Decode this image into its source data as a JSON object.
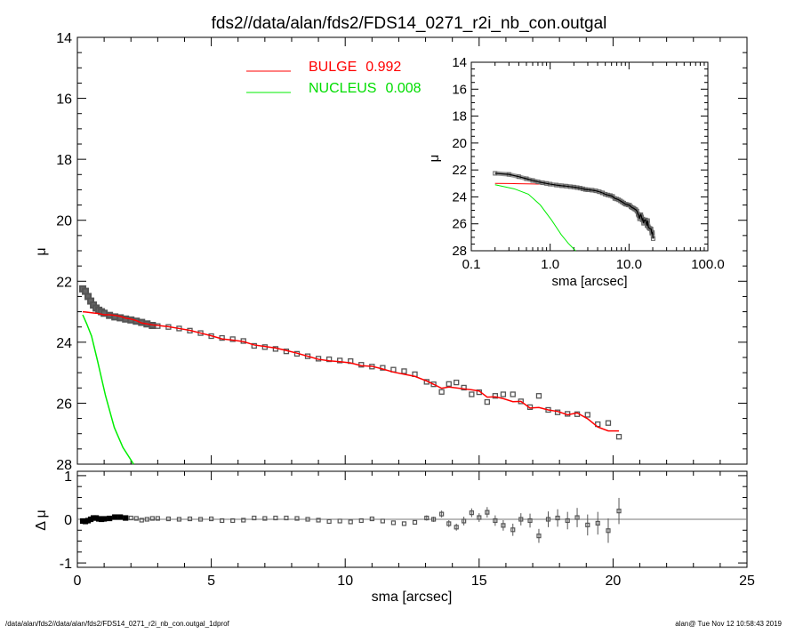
{
  "chart_data": {
    "type": "scatter",
    "title": "fds2//data/alan/fds2/FDS14_0271_r2i_nb_con.outgal",
    "xlabel": "sma [arcsec]",
    "ylabel": "μ",
    "resid_ylabel": "Δ μ",
    "xlim": [
      0,
      25
    ],
    "ylim": [
      28,
      14
    ],
    "resid_ylim": [
      -1.1,
      1.1
    ],
    "x_ticks": [
      "0",
      "5",
      "10",
      "15",
      "20",
      "25"
    ],
    "y_ticks": [
      "14",
      "16",
      "18",
      "20",
      "22",
      "24",
      "26",
      "28"
    ],
    "resid_ticks": [
      "1",
      "0",
      "-1"
    ],
    "legend": [
      {
        "label": "BULGE",
        "value": "0.992",
        "color": "#ff0000"
      },
      {
        "label": "NUCLEUS",
        "value": "0.008",
        "color": "#00ee00"
      }
    ],
    "legend_placement": "top-center",
    "inset": {
      "xlabel": "sma [arcsec]",
      "ylabel": "μ",
      "xscale": "log",
      "xlim": [
        0.1,
        100
      ],
      "ylim": [
        28,
        14
      ],
      "x_ticks": [
        "0.1",
        "1.0",
        "10.0",
        "100.0"
      ],
      "y_ticks": [
        "14",
        "16",
        "18",
        "20",
        "22",
        "24",
        "26",
        "28"
      ],
      "placement": "top-right"
    },
    "points_columns": [
      "sma",
      "mu",
      "delta_mu",
      "err"
    ],
    "points": [
      [
        0.2,
        22.25,
        -0.04,
        0
      ],
      [
        0.3,
        22.33,
        -0.05,
        0
      ],
      [
        0.4,
        22.5,
        -0.03,
        0
      ],
      [
        0.5,
        22.65,
        0,
        0
      ],
      [
        0.6,
        22.78,
        0.03,
        0
      ],
      [
        0.7,
        22.88,
        0.03,
        0
      ],
      [
        0.8,
        22.95,
        0.01,
        0
      ],
      [
        0.9,
        23.0,
        0,
        0
      ],
      [
        1.0,
        23.05,
        0.01,
        0
      ],
      [
        1.2,
        23.12,
        0.02,
        0
      ],
      [
        1.4,
        23.17,
        0.05,
        0
      ],
      [
        1.6,
        23.2,
        0.05,
        0
      ],
      [
        1.8,
        23.24,
        0.03,
        0
      ],
      [
        2.0,
        23.27,
        0.03,
        0
      ],
      [
        2.2,
        23.31,
        0.02,
        0
      ],
      [
        2.4,
        23.35,
        -0.02,
        0
      ],
      [
        2.6,
        23.4,
        0,
        0
      ],
      [
        2.8,
        23.45,
        0.02,
        0
      ],
      [
        3.0,
        23.47,
        0.02,
        0
      ],
      [
        3.4,
        23.5,
        0.01,
        0
      ],
      [
        3.8,
        23.55,
        0,
        0
      ],
      [
        4.2,
        23.62,
        0.01,
        0
      ],
      [
        4.6,
        23.7,
        0,
        0
      ],
      [
        5.0,
        23.8,
        0.01,
        0
      ],
      [
        5.4,
        23.86,
        -0.03,
        0
      ],
      [
        5.8,
        23.9,
        -0.03,
        0
      ],
      [
        6.2,
        23.96,
        -0.02,
        0
      ],
      [
        6.6,
        24.12,
        0.03,
        0
      ],
      [
        7.0,
        24.16,
        0.02,
        0
      ],
      [
        7.4,
        24.22,
        0.03,
        0
      ],
      [
        7.8,
        24.3,
        0.03,
        0
      ],
      [
        8.2,
        24.38,
        0.02,
        0
      ],
      [
        8.6,
        24.46,
        0,
        0
      ],
      [
        9.0,
        24.54,
        -0.02,
        0
      ],
      [
        9.4,
        24.56,
        -0.05,
        0
      ],
      [
        9.8,
        24.6,
        -0.04,
        0
      ],
      [
        10.2,
        24.62,
        -0.06,
        0
      ],
      [
        10.6,
        24.74,
        -0.03,
        0
      ],
      [
        11.0,
        24.8,
        0.01,
        0
      ],
      [
        11.4,
        24.84,
        -0.04,
        0
      ],
      [
        11.8,
        24.9,
        -0.08,
        0
      ],
      [
        12.2,
        24.95,
        -0.1,
        0
      ],
      [
        12.6,
        25.05,
        -0.07,
        0
      ],
      [
        13.04,
        25.3,
        0.03,
        0.03
      ],
      [
        13.3,
        25.38,
        0,
        0.03
      ],
      [
        13.6,
        25.63,
        0.12,
        0.04
      ],
      [
        13.87,
        25.37,
        -0.1,
        0.04
      ],
      [
        14.15,
        25.32,
        -0.18,
        0.04
      ],
      [
        14.43,
        25.49,
        -0.04,
        0.05
      ],
      [
        14.72,
        25.71,
        0.15,
        0.05
      ],
      [
        15.0,
        25.64,
        0.04,
        0.05
      ],
      [
        15.3,
        25.96,
        0.16,
        0.06
      ],
      [
        15.6,
        25.76,
        -0.03,
        0.06
      ],
      [
        15.9,
        25.71,
        -0.14,
        0.06
      ],
      [
        16.26,
        25.71,
        -0.24,
        0.07
      ],
      [
        16.56,
        25.94,
        0,
        0.07
      ],
      [
        16.9,
        26.13,
        -0.03,
        0.08
      ],
      [
        17.23,
        25.76,
        -0.38,
        0.08
      ],
      [
        17.58,
        26.22,
        0,
        0.09
      ],
      [
        17.93,
        26.3,
        0.03,
        0.1
      ],
      [
        18.3,
        26.35,
        -0.03,
        0.1
      ],
      [
        18.66,
        26.36,
        0.04,
        0.11
      ],
      [
        19.05,
        26.38,
        -0.13,
        0.12
      ],
      [
        19.43,
        26.69,
        -0.09,
        0.13
      ],
      [
        19.82,
        26.65,
        -0.26,
        0.14
      ],
      [
        20.22,
        27.1,
        0.19,
        0.15
      ]
    ],
    "bulge_inner": {
      "sma": [
        0.2,
        0.3,
        0.4,
        0.5,
        0.6,
        0.7,
        0.8,
        0.9,
        1.0
      ],
      "mu": [
        23.0,
        23.01,
        23.02,
        23.03,
        23.04,
        23.05,
        23.06,
        23.08,
        23.1
      ]
    },
    "nucleus": {
      "sma": [
        0.2,
        0.35,
        0.53,
        0.75,
        1.05,
        1.38,
        1.7,
        2.1
      ],
      "mu": [
        23.1,
        23.4,
        23.8,
        24.6,
        25.75,
        26.8,
        27.45,
        28.05
      ]
    },
    "colors": {
      "bulge": "#ff0000",
      "nucleus": "#00ee00",
      "data": "#555555"
    }
  },
  "footer": {
    "left": "/data/alan/fds2//data/alan/fds2/FDS14_0271_r2i_nb_con.outgal_1dprof",
    "right": "alan@  Tue Nov 12 10:58:43 2019"
  }
}
